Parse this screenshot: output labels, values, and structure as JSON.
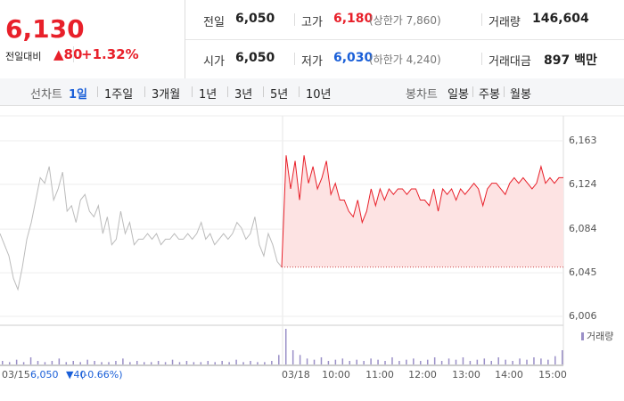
{
  "header": {
    "price": "6,130",
    "change_label": "전일대비",
    "change": "▲80",
    "rate": "+1.32%",
    "stats": [
      [
        {
          "label": "전일",
          "value": "6,050"
        },
        {
          "label": "고가",
          "value": "6,180",
          "note": "(상한가 7,860)"
        },
        {
          "label": "거래량",
          "value": "146,604"
        }
      ],
      [
        {
          "label": "시가",
          "value": "6,050"
        },
        {
          "label": "저가",
          "value": "6,030",
          "note": "(하한가 4,240)"
        },
        {
          "label": "거래대금",
          "value": "897 백만"
        }
      ]
    ]
  },
  "tabs": {
    "line_label": "선차트",
    "line_tabs": [
      "1일",
      "1주일",
      "3개월",
      "1년",
      "3년",
      "5년",
      "10년"
    ],
    "candle_label": "봉차트",
    "candle_tabs": [
      "일봉",
      "주봉",
      "월봉"
    ]
  },
  "chart_data": {
    "type": "line",
    "ylim": [
      6006,
      6163
    ],
    "yticks": [
      {
        "value": 6006,
        "label": "6,006"
      },
      {
        "value": 6045,
        "label": "6,045"
      },
      {
        "value": 6084,
        "label": "6,084"
      },
      {
        "value": 6124,
        "label": "6,124"
      },
      {
        "value": 6163,
        "label": "6,163"
      }
    ],
    "reference": 6050,
    "x_labels": [
      "03/15",
      "03/18",
      "10:00",
      "11:00",
      "12:00",
      "13:00",
      "14:00",
      "15:00"
    ],
    "prev_day": {
      "price": "6,050",
      "change": "▼40",
      "rate": "(-0.66%)"
    },
    "series": [
      {
        "color": "#bbbbbb",
        "values": [
          6080,
          6070,
          6060,
          6040,
          6030,
          6050,
          6075,
          6090,
          6110,
          6130,
          6125,
          6140,
          6110,
          6120,
          6135,
          6100,
          6105,
          6090,
          6110,
          6115,
          6100,
          6095,
          6105,
          6080,
          6095,
          6070,
          6075,
          6100,
          6080,
          6090,
          6070,
          6075,
          6075,
          6080,
          6075,
          6080,
          6070,
          6075,
          6075,
          6080,
          6075,
          6075,
          6080,
          6075,
          6080,
          6090,
          6075,
          6080,
          6070,
          6075,
          6080,
          6075,
          6080,
          6090,
          6085,
          6075,
          6080,
          6095,
          6070,
          6060,
          6080,
          6070,
          6055,
          6050
        ]
      },
      {
        "color": "#e8202a",
        "fill": "#fde3e3",
        "values": [
          6050,
          6150,
          6120,
          6145,
          6110,
          6150,
          6125,
          6140,
          6120,
          6130,
          6145,
          6115,
          6125,
          6110,
          6110,
          6100,
          6095,
          6110,
          6090,
          6100,
          6120,
          6105,
          6120,
          6110,
          6120,
          6115,
          6120,
          6120,
          6115,
          6120,
          6120,
          6110,
          6110,
          6105,
          6120,
          6100,
          6120,
          6115,
          6120,
          6110,
          6120,
          6115,
          6120,
          6125,
          6120,
          6105,
          6120,
          6125,
          6125,
          6120,
          6115,
          6125,
          6130,
          6125,
          6130,
          6125,
          6120,
          6125,
          6140,
          6125,
          6130,
          6125,
          6130,
          6130
        ]
      }
    ],
    "volume": {
      "name": "거래량",
      "color": "#9a8fc7",
      "values": [
        3,
        2,
        4,
        2,
        6,
        3,
        2,
        3,
        5,
        2,
        3,
        2,
        4,
        3,
        2,
        2,
        3,
        5,
        2,
        3,
        2,
        2,
        3,
        2,
        4,
        2,
        3,
        2,
        2,
        3,
        2,
        3,
        2,
        4,
        2,
        3,
        2,
        2,
        3,
        8,
        30,
        12,
        8,
        5,
        4,
        6,
        3,
        4,
        5,
        3,
        4,
        3,
        5,
        4,
        3,
        6,
        3,
        4,
        5,
        3,
        4,
        6,
        3,
        5,
        4,
        6,
        3,
        4,
        5,
        3,
        6,
        4,
        3,
        5,
        4,
        6,
        5,
        4,
        7,
        12
      ]
    }
  }
}
